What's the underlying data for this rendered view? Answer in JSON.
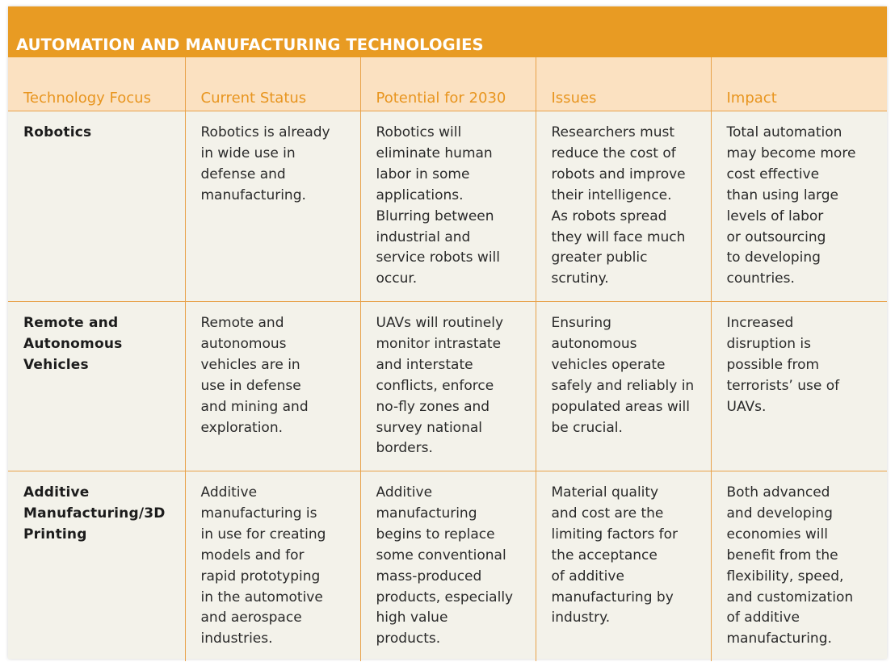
{
  "title": "AUTOMATION AND MANUFACTURING TECHNOLOGIES",
  "columns": [
    "Technology Focus",
    "Current Status",
    "Potential for 2030",
    "Issues",
    "Impact"
  ],
  "rows": [
    {
      "focus": "Robotics",
      "status": "Robotics is already\nin wide use in\ndefense and\nmanufacturing.",
      "potential": "Robotics will\neliminate human\nlabor in some\napplications.\nBlurring between\nindustrial and\nservice robots will\noccur.",
      "issues": "Researchers must\nreduce the cost of\nrobots and improve\ntheir intelligence.\nAs robots spread\nthey will face much\ngreater public\nscrutiny.",
      "impact": "Total automation\nmay become more\ncost effective\nthan using large\nlevels of labor\nor outsourcing\nto developing\ncountries."
    },
    {
      "focus": "Remote and\nAutonomous\nVehicles",
      "status": "Remote and\nautonomous\nvehicles are in\nuse in defense\nand mining and\nexploration.",
      "potential": "UAVs will routinely\nmonitor intrastate\nand interstate\nconflicts, enforce\nno-fly zones and\nsurvey national\nborders.",
      "issues": "Ensuring\nautonomous\nvehicles operate\nsafely and reliably in\npopulated areas will\nbe crucial.",
      "impact": "Increased\ndisruption is\npossible from\nterrorists’ use of\nUAVs."
    },
    {
      "focus": "Additive\nManufacturing/3D\nPrinting",
      "status": "Additive\nmanufacturing is\nin use for creating\nmodels and for\nrapid prototyping\nin the automotive\nand aerospace\nindustries.",
      "potential": "Additive\nmanufacturing\nbegins to replace\nsome conventional\nmass-produced\nproducts, especially\nhigh value\nproducts.",
      "issues": "Material quality\nand cost are the\nlimiting factors for\nthe acceptance\nof additive\nmanufacturing by\nindustry.",
      "impact": "Both advanced\nand developing\neconomies will\nbenefit from the\nflexibility, speed,\nand customization\nof additive\nmanufacturing."
    }
  ],
  "colors": {
    "title_bar": "#e89b23",
    "header_bg": "#fbe1c1",
    "header_text": "#e8951f",
    "grid": "#e8a24a",
    "body_bg": "#f3f2ea"
  }
}
